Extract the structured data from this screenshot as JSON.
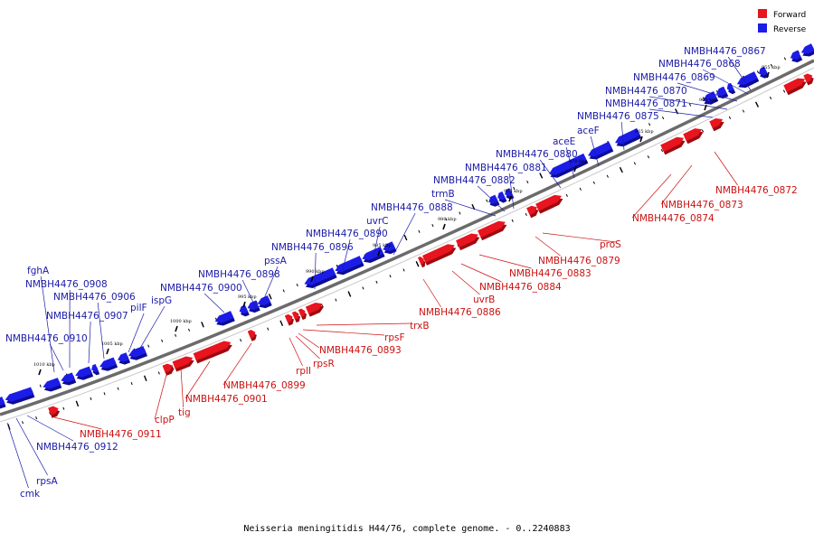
{
  "colors": {
    "forward": "#e8141e",
    "forward_dark": "#9c0b10",
    "reverse": "#1c1ce8",
    "reverse_dark": "#0c0c94",
    "backbone": "#6b6b6b",
    "label_forward": "#cc1111",
    "label_reverse": "#1a1aa8"
  },
  "legend": {
    "forward": "Forward",
    "reverse": "Reverse"
  },
  "caption": "Neisseria meningitidis H44/76, complete genome. - 0..2240883",
  "ticks": [
    "955 kbp",
    "960 kbp",
    "965 kbp",
    "970 kbp",
    "975 kbp",
    "980 kbp",
    "985 kbp",
    "990 kbp",
    "995 kbp",
    "1000 kbp",
    "1005 kbp",
    "1010 kbp"
  ],
  "reverse_labels": [
    "NMBH4476_0867",
    "NMBH4476_0868",
    "NMBH4476_0869",
    "NMBH4476_0870",
    "NMBH4476_0871",
    "NMBH4476_0875",
    "aceF",
    "aceE",
    "NMBH4476_0880",
    "NMBH4476_0881",
    "NMBH4476_0882",
    "trmB",
    "NMBH4476_0888",
    "uvrC",
    "NMBH4476_0890",
    "NMBH4476_0896",
    "pssA",
    "NMBH4476_0898",
    "NMBH4476_0900",
    "ispG",
    "pilF",
    "NMBH4476_0906",
    "NMBH4476_0907",
    "NMBH4476_0908",
    "fghA",
    "NMBH4476_0910",
    "NMBH4476_0912",
    "rpsA",
    "cmk"
  ],
  "forward_labels": [
    "NMBH4476_0872",
    "NMBH4476_0873",
    "NMBH4476_0874",
    "proS",
    "NMBH4476_0879",
    "NMBH4476_0883",
    "NMBH4476_0884",
    "uvrB",
    "NMBH4476_0886",
    "trxB",
    "rpsF",
    "NMBH4476_0893",
    "rpsR",
    "rplI",
    "NMBH4476_0899",
    "NMBH4476_0901",
    "tig",
    "clpP",
    "NMBH4476_0911"
  ]
}
